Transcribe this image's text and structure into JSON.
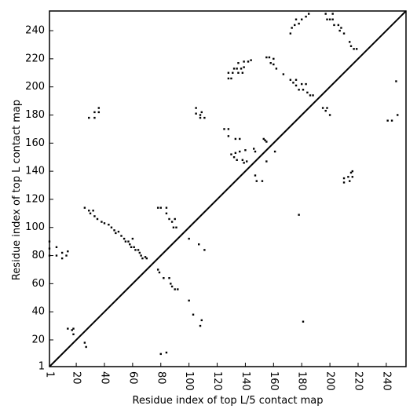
{
  "chart_data": {
    "type": "scatter",
    "x_label": "Residue index of top L/5 contact map",
    "y_label": "Residue index of top L contact map",
    "color": "#000000",
    "xlim": [
      1,
      254
    ],
    "ylim": [
      1,
      254
    ],
    "xticks": [
      1,
      20,
      40,
      60,
      80,
      100,
      120,
      140,
      160,
      180,
      200,
      220,
      240
    ],
    "yticks": [
      1,
      20,
      40,
      60,
      80,
      100,
      120,
      140,
      160,
      180,
      200,
      220,
      240
    ],
    "x": [
      1,
      1,
      1,
      6,
      6,
      10,
      10,
      13,
      14,
      14,
      17,
      18,
      18,
      26,
      27,
      26,
      29,
      30,
      32,
      33,
      35,
      38,
      40,
      43,
      45,
      47,
      48,
      50,
      52,
      54,
      55,
      57,
      58,
      59,
      60,
      61,
      62,
      64,
      65,
      66,
      67,
      69,
      70,
      29,
      33,
      33,
      36,
      36,
      78,
      80,
      84,
      84,
      86,
      88,
      89,
      91,
      90,
      78,
      79,
      82,
      86,
      87,
      88,
      90,
      92,
      100,
      100,
      103,
      108,
      109,
      107,
      111,
      80,
      84,
      105,
      105,
      108,
      109,
      111,
      108,
      125,
      128,
      128,
      128,
      128,
      130,
      131,
      132,
      134,
      135,
      135,
      137,
      139,
      142,
      144,
      139,
      138,
      130,
      132,
      133,
      133,
      136,
      134,
      136,
      138,
      139,
      140,
      141,
      146,
      147,
      147,
      148,
      152,
      153,
      154,
      155,
      155,
      161,
      155,
      157,
      158,
      160,
      160,
      162,
      167,
      178,
      181,
      172,
      173,
      175,
      176,
      178,
      180,
      183,
      185,
      172,
      174,
      176,
      176,
      178,
      180,
      181,
      183,
      184,
      186,
      188,
      195,
      197,
      198,
      200,
      197,
      198,
      200,
      202,
      202,
      203,
      206,
      207,
      208,
      210,
      214,
      215,
      217,
      219,
      210,
      210,
      213,
      214,
      215,
      216,
      216,
      241,
      244,
      247,
      248
    ],
    "values": [
      90,
      85,
      80,
      86,
      80,
      78,
      82,
      80,
      83,
      28,
      27,
      28,
      24,
      18,
      15,
      114,
      112,
      110,
      112,
      108,
      106,
      104,
      103,
      102,
      100,
      98,
      96,
      97,
      94,
      92,
      90,
      90,
      88,
      86,
      92,
      86,
      84,
      84,
      82,
      80,
      78,
      79,
      78,
      178,
      178,
      182,
      182,
      185,
      114,
      114,
      114,
      110,
      106,
      104,
      100,
      100,
      106,
      70,
      68,
      64,
      64,
      60,
      58,
      56,
      56,
      92,
      48,
      38,
      30,
      34,
      88,
      84,
      10,
      11,
      185,
      181,
      180,
      182,
      178,
      178,
      170,
      170,
      165,
      210,
      206,
      206,
      210,
      213,
      213,
      210,
      217,
      213,
      218,
      218,
      219,
      214,
      210,
      152,
      150,
      153,
      163,
      163,
      148,
      154,
      148,
      146,
      155,
      147,
      156,
      154,
      137,
      133,
      133,
      163,
      162,
      161,
      147,
      154,
      221,
      221,
      217,
      220,
      216,
      213,
      209,
      109,
      33,
      238,
      242,
      244,
      248,
      245,
      248,
      250,
      252,
      205,
      203,
      205,
      201,
      198,
      202,
      198,
      202,
      196,
      194,
      194,
      185,
      183,
      185,
      180,
      252,
      248,
      248,
      252,
      248,
      244,
      244,
      240,
      242,
      238,
      232,
      229,
      227,
      227,
      135,
      132,
      136,
      133,
      139,
      140,
      136,
      176,
      176,
      204,
      180
    ]
  }
}
